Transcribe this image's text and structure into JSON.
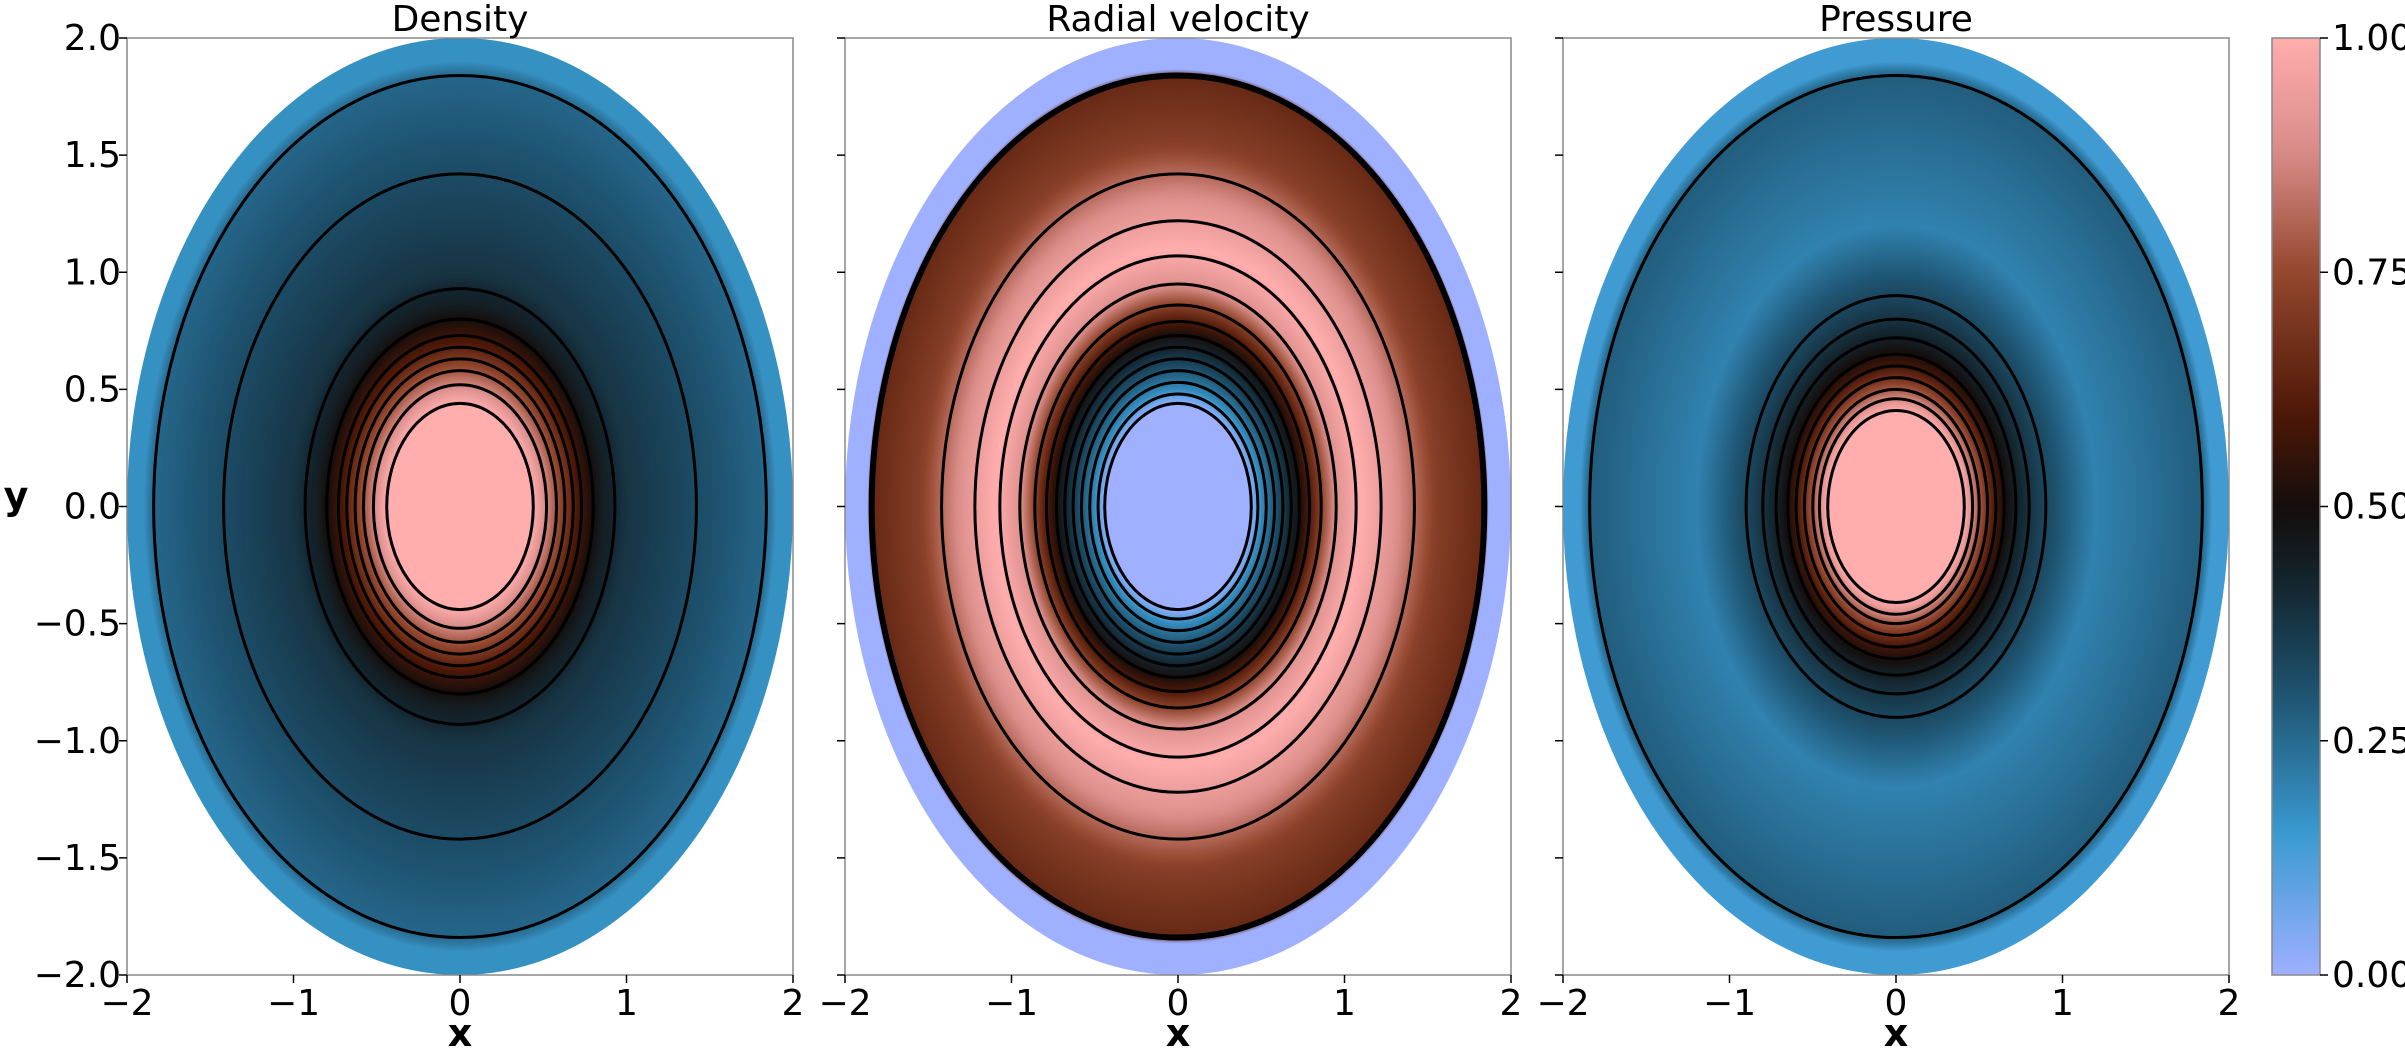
{
  "chart_data": {
    "type": "heatmap",
    "colormap": {
      "name": "berlin",
      "stops": [
        {
          "value": 0.0,
          "color": "#9eb0ff"
        },
        {
          "value": 0.15,
          "color": "#3a9ad0"
        },
        {
          "value": 0.3,
          "color": "#1e5370"
        },
        {
          "value": 0.42,
          "color": "#13242d"
        },
        {
          "value": 0.5,
          "color": "#150d0b"
        },
        {
          "value": 0.6,
          "color": "#4e1807"
        },
        {
          "value": 0.75,
          "color": "#94482f"
        },
        {
          "value": 0.88,
          "color": "#d98d89"
        },
        {
          "value": 1.0,
          "color": "#ffadad"
        }
      ],
      "range": [
        0.0,
        1.0
      ],
      "ticks": [
        "0.00",
        "0.25",
        "0.50",
        "0.75",
        "1.00"
      ]
    },
    "panels": [
      {
        "title": "Density",
        "xlabel": "x",
        "ylabel": "y",
        "field": "density",
        "contour_levels_r": [
          0.44,
          0.52,
          0.58,
          0.63,
          0.68,
          0.73,
          0.8,
          0.93,
          1.42,
          1.84
        ],
        "profile": [
          [
            0,
            1.0
          ],
          [
            0.44,
            1.0
          ],
          [
            0.55,
            0.82
          ],
          [
            0.7,
            0.6
          ],
          [
            0.85,
            0.45
          ],
          [
            1.0,
            0.38
          ],
          [
            1.42,
            0.32
          ],
          [
            1.84,
            0.26
          ],
          [
            1.9,
            0.17
          ],
          [
            2.0,
            0.17
          ]
        ]
      },
      {
        "title": "Radial velocity",
        "xlabel": "x",
        "ylabel": "",
        "field": "radial_velocity",
        "contour_levels_r": [
          0.44,
          0.48,
          0.53,
          0.58,
          0.63,
          0.68,
          0.73,
          0.79,
          0.86,
          0.95,
          1.07,
          1.22,
          1.42,
          1.84
        ],
        "profile": [
          [
            0,
            0.0
          ],
          [
            0.44,
            0.0
          ],
          [
            0.5,
            0.18
          ],
          [
            0.6,
            0.32
          ],
          [
            0.7,
            0.45
          ],
          [
            0.8,
            0.62
          ],
          [
            0.95,
            0.9
          ],
          [
            1.1,
            1.0
          ],
          [
            1.3,
            0.9
          ],
          [
            1.55,
            0.72
          ],
          [
            1.84,
            0.65
          ],
          [
            1.86,
            0.0
          ],
          [
            2.0,
            0.0
          ]
        ]
      },
      {
        "title": "Pressure",
        "xlabel": "x",
        "ylabel": "",
        "field": "pressure",
        "contour_levels_r": [
          0.41,
          0.46,
          0.5,
          0.55,
          0.6,
          0.65,
          0.72,
          0.8,
          0.9,
          1.84
        ],
        "profile": [
          [
            0,
            1.0
          ],
          [
            0.41,
            1.0
          ],
          [
            0.5,
            0.78
          ],
          [
            0.6,
            0.58
          ],
          [
            0.7,
            0.45
          ],
          [
            0.8,
            0.38
          ],
          [
            0.9,
            0.33
          ],
          [
            1.2,
            0.2
          ],
          [
            1.6,
            0.25
          ],
          [
            1.84,
            0.28
          ],
          [
            1.9,
            0.14
          ],
          [
            2.0,
            0.14
          ]
        ]
      }
    ],
    "xlim": [
      -2,
      2
    ],
    "ylim": [
      -2,
      2
    ],
    "xticks": [
      -2,
      -1,
      0,
      1,
      2
    ],
    "yticks": [
      2.0,
      1.5,
      1.0,
      0.5,
      0.0,
      -0.5,
      -1.0,
      -1.5,
      -2.0
    ],
    "xtick_labels": [
      "−2",
      "−1",
      "0",
      "1",
      "2"
    ],
    "ytick_labels": [
      "2.0",
      "1.5",
      "1.0",
      "0.5",
      "0.0",
      "−0.5",
      "−1.0",
      "−1.5",
      "−2.0"
    ]
  }
}
